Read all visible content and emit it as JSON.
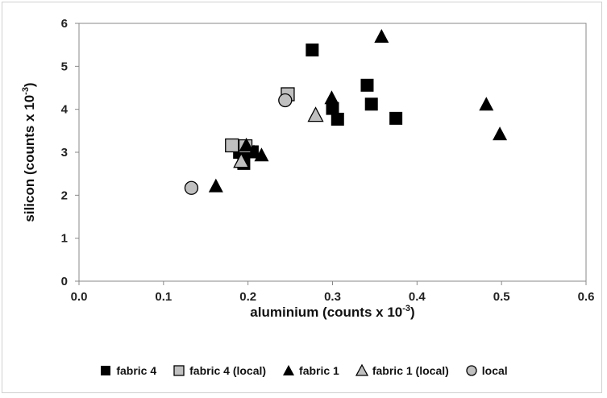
{
  "chart_data": {
    "type": "scatter",
    "title": "",
    "xlabel": "aluminium (counts x 10",
    "xlabel_sup": "-3",
    "xlabel_end": ")",
    "ylabel": "silicon (counts x 10",
    "ylabel_sup": "-3",
    "ylabel_end": ")",
    "xlim": [
      0,
      0.6
    ],
    "ylim": [
      0,
      6
    ],
    "x_ticks": [
      "0.0",
      "0.1",
      "0.2",
      "0.3",
      "0.4",
      "0.5",
      "0.6"
    ],
    "y_ticks": [
      "0",
      "1",
      "2",
      "3",
      "4",
      "5",
      "6"
    ],
    "grid": false,
    "legend_position": "bottom",
    "series": [
      {
        "name": "fabric 4",
        "marker": "square",
        "color": "#000000",
        "points": [
          {
            "x": 0.276,
            "y": 5.38
          },
          {
            "x": 0.341,
            "y": 4.56
          },
          {
            "x": 0.346,
            "y": 4.12
          },
          {
            "x": 0.3,
            "y": 4.02
          },
          {
            "x": 0.306,
            "y": 3.77
          },
          {
            "x": 0.375,
            "y": 3.79
          },
          {
            "x": 0.19,
            "y": 3.0
          },
          {
            "x": 0.205,
            "y": 3.01
          },
          {
            "x": 0.195,
            "y": 2.74
          }
        ]
      },
      {
        "name": "fabric 4 (local)",
        "marker": "square",
        "color": "#c0c0c0",
        "points": [
          {
            "x": 0.247,
            "y": 4.35
          },
          {
            "x": 0.181,
            "y": 3.16
          },
          {
            "x": 0.197,
            "y": 3.14
          }
        ]
      },
      {
        "name": "fabric 1",
        "marker": "triangle",
        "color": "#000000",
        "points": [
          {
            "x": 0.358,
            "y": 5.7
          },
          {
            "x": 0.299,
            "y": 4.27
          },
          {
            "x": 0.482,
            "y": 4.12
          },
          {
            "x": 0.498,
            "y": 3.43
          },
          {
            "x": 0.198,
            "y": 3.17
          },
          {
            "x": 0.207,
            "y": 3.01
          },
          {
            "x": 0.216,
            "y": 2.94
          },
          {
            "x": 0.162,
            "y": 2.22
          }
        ]
      },
      {
        "name": "fabric 1 (local)",
        "marker": "triangle",
        "color": "#c0c0c0",
        "points": [
          {
            "x": 0.28,
            "y": 3.87
          },
          {
            "x": 0.192,
            "y": 2.8
          }
        ]
      },
      {
        "name": "local",
        "marker": "circle",
        "color": "#c0c0c0",
        "points": [
          {
            "x": 0.244,
            "y": 4.21
          },
          {
            "x": 0.133,
            "y": 2.17
          }
        ]
      }
    ]
  }
}
